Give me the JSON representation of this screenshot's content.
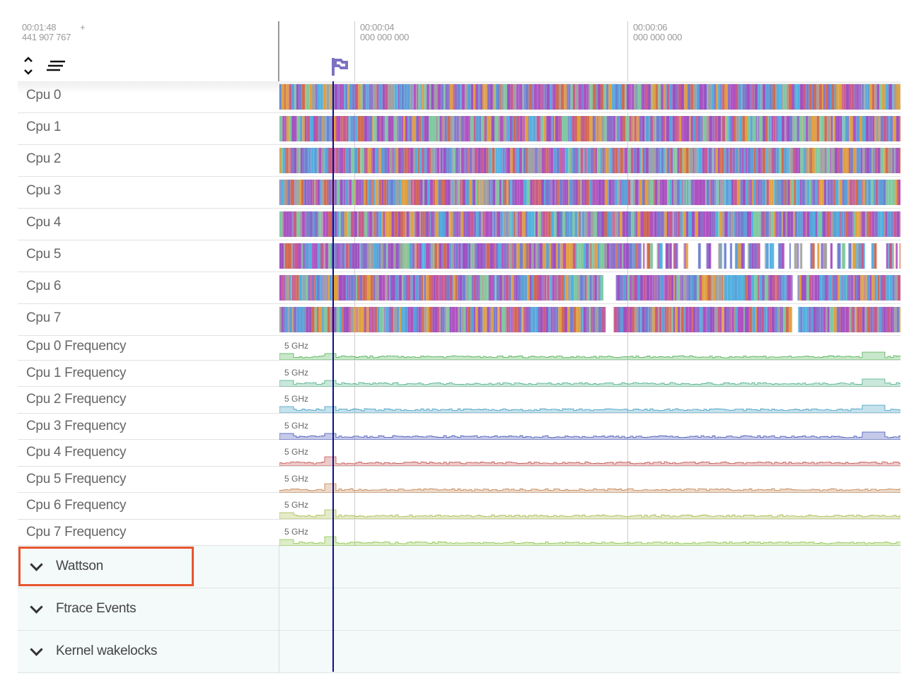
{
  "header": {
    "offset_time": "00:01:48",
    "offset_plus": "+",
    "offset_ns": "441 907 767",
    "ticks": [
      {
        "time": "00:00:04",
        "ns": "000 000 000"
      },
      {
        "time": "00:00:06",
        "ns": "000 000 000"
      }
    ],
    "expand_icon": "chevron-up-down-icon",
    "menu_icon": "sort-lines-icon",
    "flag_icon": "flag-icon"
  },
  "cpu_tracks": [
    {
      "label": "Cpu 0"
    },
    {
      "label": "Cpu 1"
    },
    {
      "label": "Cpu 2"
    },
    {
      "label": "Cpu 3"
    },
    {
      "label": "Cpu 4"
    },
    {
      "label": "Cpu 5"
    },
    {
      "label": "Cpu 6"
    },
    {
      "label": "Cpu 7"
    }
  ],
  "freq_tracks": [
    {
      "label": "Cpu 0 Frequency",
      "max": "5 GHz",
      "color": "#4caf50"
    },
    {
      "label": "Cpu 1 Frequency",
      "max": "5 GHz",
      "color": "#4cae86"
    },
    {
      "label": "Cpu 2 Frequency",
      "max": "5 GHz",
      "color": "#3d9bbf"
    },
    {
      "label": "Cpu 3 Frequency",
      "max": "5 GHz",
      "color": "#3f51b5"
    },
    {
      "label": "Cpu 4 Frequency",
      "max": "5 GHz",
      "color": "#c0504d"
    },
    {
      "label": "Cpu 5 Frequency",
      "max": "5 GHz",
      "color": "#c0804d"
    },
    {
      "label": "Cpu 6 Frequency",
      "max": "5 GHz",
      "color": "#a9b84a"
    },
    {
      "label": "Cpu 7 Frequency",
      "max": "5 GHz",
      "color": "#8bc34a"
    }
  ],
  "groups": [
    {
      "label": "Wattson",
      "highlighted": true
    },
    {
      "label": "Ftrace Events"
    },
    {
      "label": "Kernel wakelocks"
    }
  ],
  "colors": {
    "cursor": "#0d0d8a",
    "highlight": "#e8542e",
    "flag": "#7b72c4"
  }
}
